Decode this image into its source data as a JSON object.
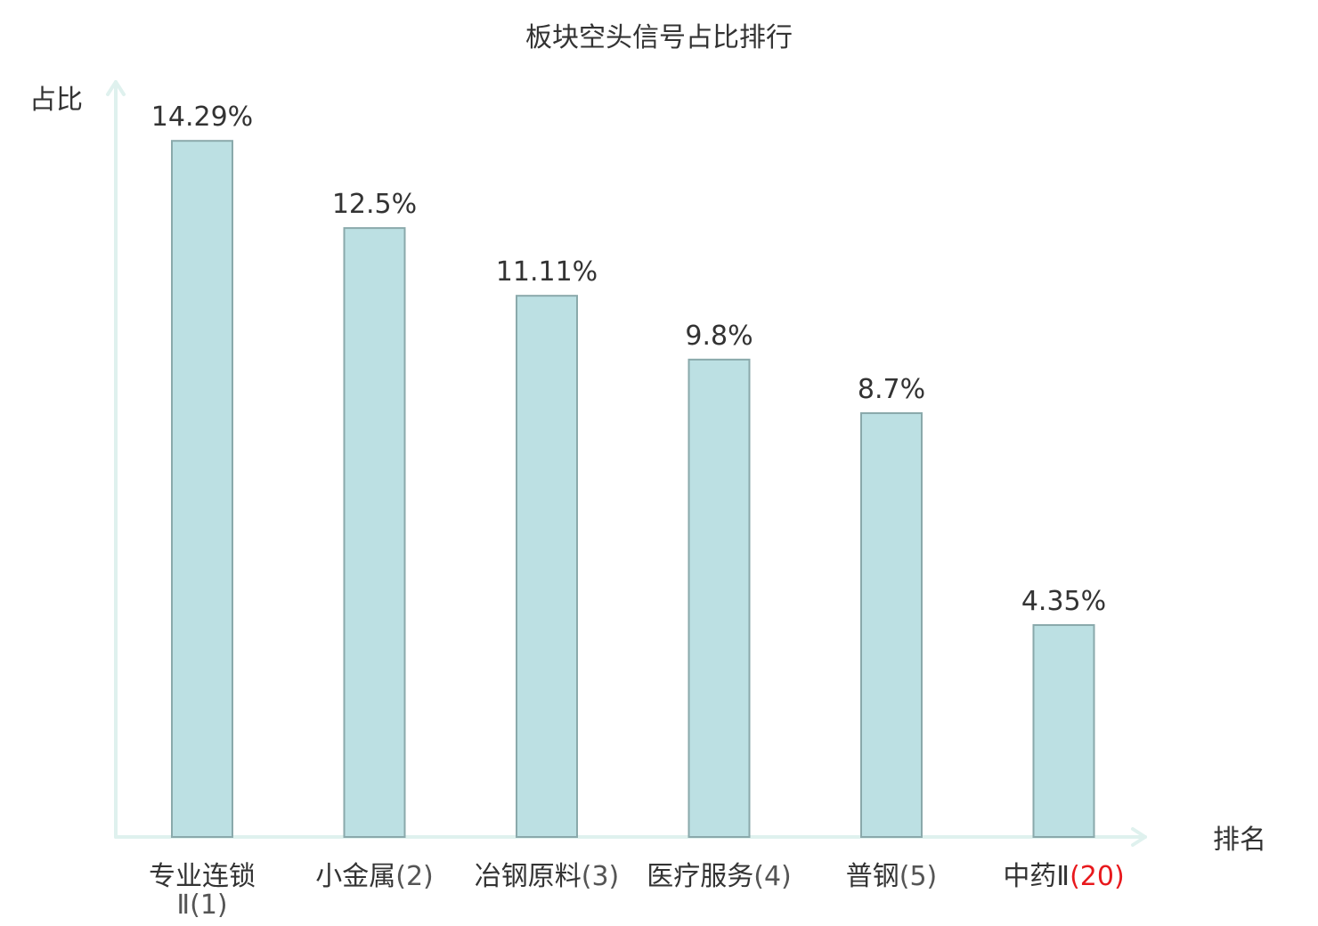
{
  "colors": {
    "bar_fill": "#bce0e3",
    "bar_stroke": "#8aa9ab",
    "axis": "#dff1ee",
    "text": "#333333",
    "rank_text": "#555555",
    "highlight": "#e8191d"
  },
  "chart_data": {
    "type": "bar",
    "title": "板块空头信号占比排行",
    "ylabel": "占比",
    "xlabel": "排名",
    "ylim": [
      0,
      15.5
    ],
    "grid": false,
    "categories": [
      {
        "name": "专业连锁",
        "name_line2": "Ⅱ(1)",
        "rank": "",
        "highlight": false
      },
      {
        "name": "小金属",
        "name_line2": "",
        "rank": "(2)",
        "highlight": false
      },
      {
        "name": "冶钢原料",
        "name_line2": "",
        "rank": "(3)",
        "highlight": false
      },
      {
        "name": "医疗服务",
        "name_line2": "",
        "rank": "(4)",
        "highlight": false
      },
      {
        "name": "普钢",
        "name_line2": "",
        "rank": "(5)",
        "highlight": false
      },
      {
        "name": "中药Ⅱ",
        "name_line2": "",
        "rank": "(20)",
        "highlight": true
      }
    ],
    "values": [
      14.29,
      12.5,
      11.11,
      9.8,
      8.7,
      4.35
    ],
    "value_labels": [
      "14.29%",
      "12.5%",
      "11.11%",
      "9.8%",
      "8.7%",
      "4.35%"
    ]
  }
}
